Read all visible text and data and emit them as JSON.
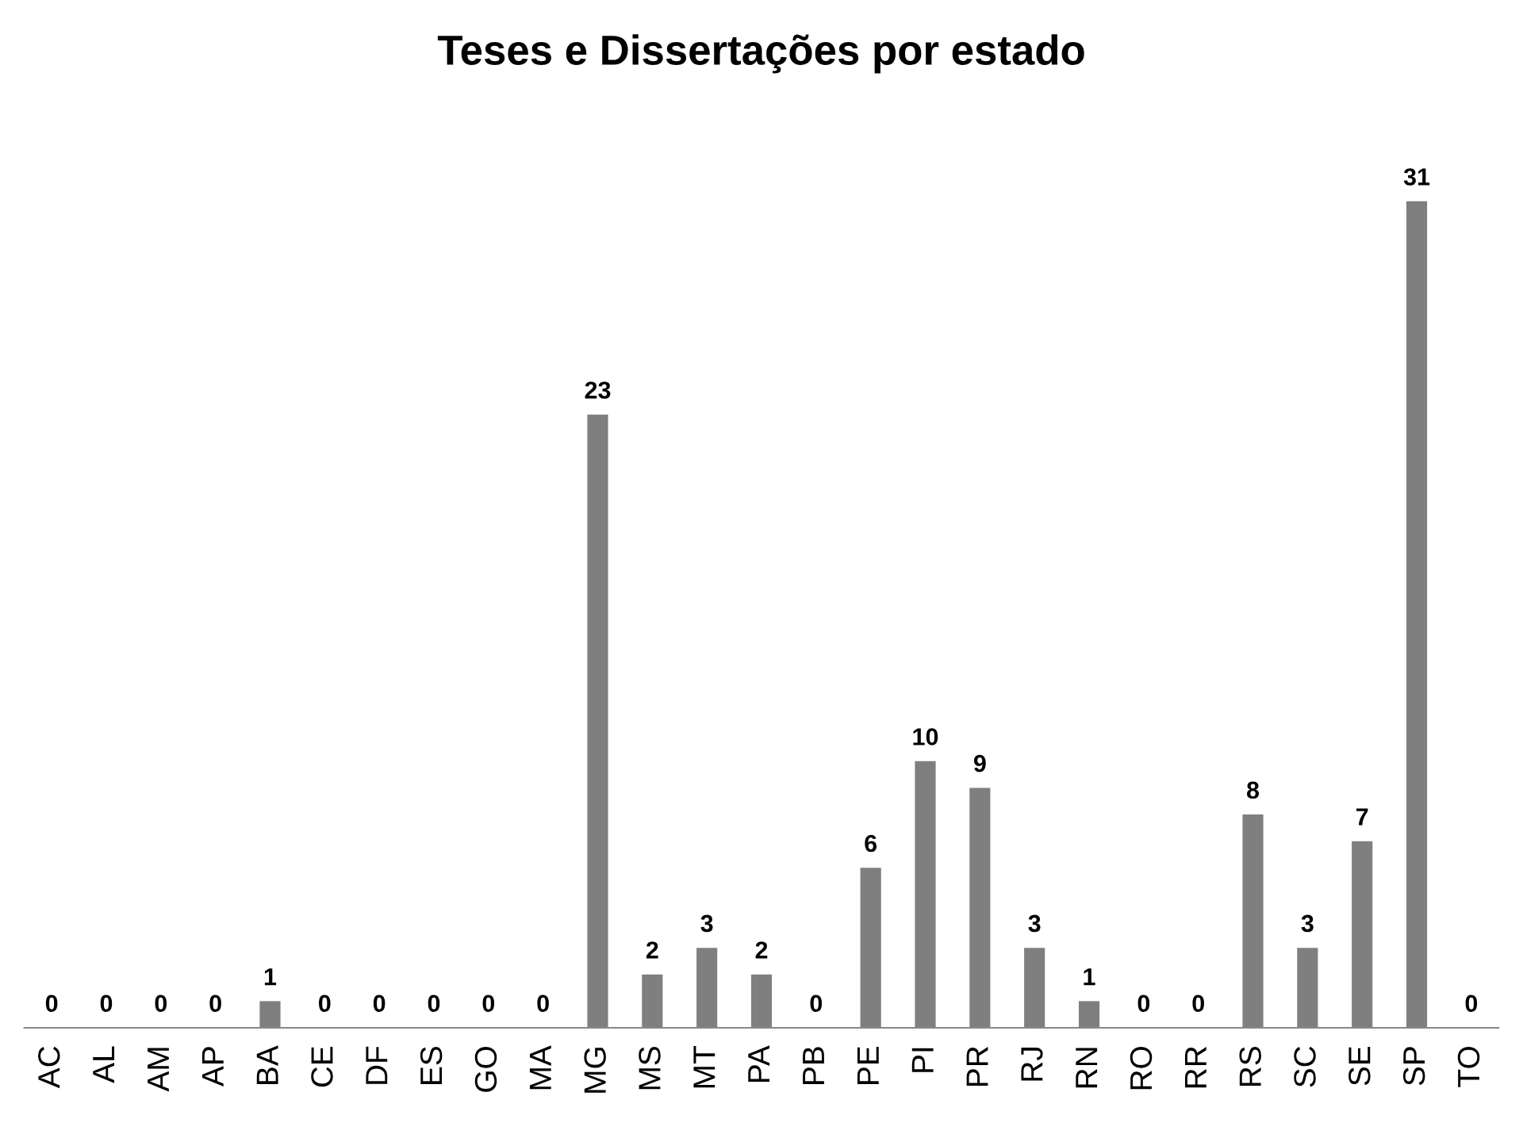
{
  "chart_data": {
    "type": "bar",
    "title": "Teses e Dissertações por estado",
    "categories": [
      "AC",
      "AL",
      "AM",
      "AP",
      "BA",
      "CE",
      "DF",
      "ES",
      "GO",
      "MA",
      "MG",
      "MS",
      "MT",
      "PA",
      "PB",
      "PE",
      "PI",
      "PR",
      "RJ",
      "RN",
      "RO",
      "RR",
      "RS",
      "SC",
      "SE",
      "SP",
      "TO"
    ],
    "values": [
      0,
      0,
      0,
      0,
      1,
      0,
      0,
      0,
      0,
      0,
      23,
      2,
      3,
      2,
      0,
      6,
      10,
      9,
      3,
      1,
      0,
      0,
      8,
      3,
      7,
      31,
      0
    ],
    "color": "#7f7f7f",
    "data_labels": true,
    "grid": false,
    "legend": false
  }
}
